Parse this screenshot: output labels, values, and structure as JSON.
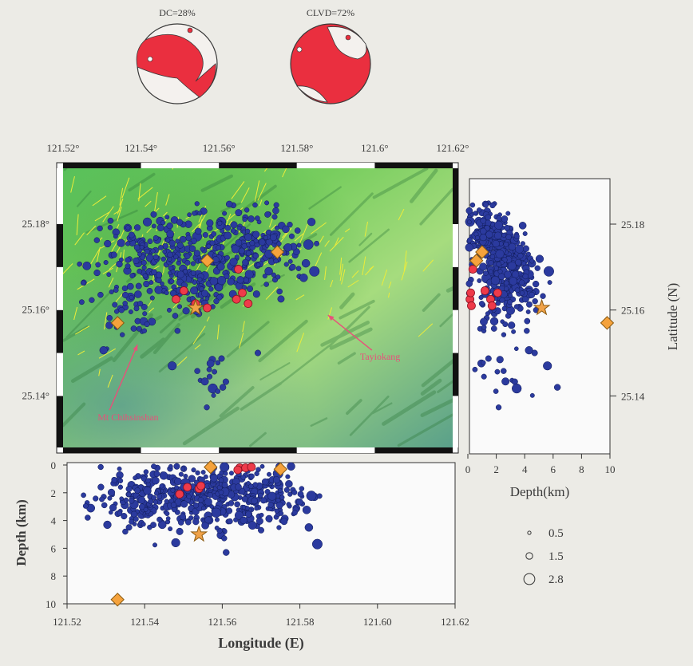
{
  "figure": {
    "beachballs": [
      {
        "label": "DC=28%",
        "type": "double-couple"
      },
      {
        "label": "CLVD=72%",
        "type": "clvd"
      }
    ],
    "map_labels": [
      {
        "text": "Tayiokang",
        "lon": 121.588,
        "lat": 25.1577
      },
      {
        "text": "Mt Chihsinshan",
        "lon": 121.535,
        "lat": 25.1445
      }
    ],
    "size_legend": [
      {
        "label": "0.5",
        "magnitude": 0.5
      },
      {
        "label": "1.5",
        "magnitude": 1.5
      },
      {
        "label": "2.8",
        "magnitude": 2.8
      }
    ],
    "colors": {
      "background": "#ecebe6",
      "quake_fill": "#2b3a9e",
      "quake_stroke": "#0f1a55",
      "red_event": "#ee3a4a",
      "station": "#f5a23c",
      "star": "#f0a248",
      "fault": "#ecec3a",
      "annotation": "#e8507a",
      "map_green": "#7fcf5e"
    }
  },
  "chart_data": [
    {
      "type": "scatter",
      "name": "map-view",
      "xlabel": "",
      "ylabel": "Latitude (N)",
      "xlim": [
        121.52,
        121.62
      ],
      "ylim": [
        25.128,
        25.193
      ],
      "x_ticks": [
        121.52,
        121.54,
        121.56,
        121.58,
        121.6,
        121.62
      ],
      "x_tick_labels": [
        "121.52°",
        "121.54°",
        "121.56°",
        "121.58°",
        "121.6°",
        "121.62°"
      ],
      "y_ticks": [
        25.14,
        25.16,
        25.18
      ],
      "y_tick_labels_left": [
        "25.14°",
        "25.16°",
        "25.18°"
      ],
      "y_tick_labels_right": [
        "25.14",
        "25.16",
        "25.18"
      ],
      "series": [
        {
          "name": "stations",
          "marker": "diamond",
          "points": [
            [
              121.534,
              25.157
            ],
            [
              121.557,
              25.1715
            ],
            [
              121.575,
              25.1735
            ]
          ]
        },
        {
          "name": "mainshock",
          "marker": "star",
          "points": [
            [
              121.554,
              25.1605
            ]
          ]
        },
        {
          "name": "red-events",
          "marker": "circle",
          "points": [
            [
              121.549,
              25.1625
            ],
            [
              121.551,
              25.1645
            ],
            [
              121.554,
              25.1615
            ],
            [
              121.557,
              25.1605
            ],
            [
              121.5645,
              25.1625
            ],
            [
              121.566,
              25.164
            ],
            [
              121.5675,
              25.1615
            ],
            [
              121.565,
              25.1695
            ]
          ]
        }
      ]
    },
    {
      "type": "scatter",
      "name": "longitude-depth",
      "xlabel": "Longitude (E)",
      "ylabel": "Depth (km)",
      "xlim": [
        121.52,
        121.62
      ],
      "ylim": [
        0,
        10
      ],
      "x_ticks": [
        121.52,
        121.54,
        121.56,
        121.58,
        121.6,
        121.62
      ],
      "x_tick_labels": [
        "121.52",
        "121.54",
        "121.56",
        "121.58",
        "121.60",
        "121.62"
      ],
      "y_ticks": [
        0,
        2,
        4,
        6,
        8,
        10
      ],
      "y_tick_labels": [
        "0",
        "2",
        "4",
        "6",
        "8",
        "10"
      ],
      "series": [
        {
          "name": "stations",
          "marker": "diamond",
          "points": [
            [
              121.557,
              0.15
            ],
            [
              121.575,
              0.3
            ],
            [
              121.533,
              9.7
            ]
          ]
        },
        {
          "name": "mainshock",
          "marker": "star",
          "points": [
            [
              121.554,
              5.0
            ]
          ]
        },
        {
          "name": "red-events",
          "marker": "circle",
          "points": [
            [
              121.549,
              2.1
            ],
            [
              121.551,
              1.6
            ],
            [
              121.554,
              1.7
            ],
            [
              121.5545,
              1.5
            ],
            [
              121.5645,
              0.2
            ],
            [
              121.566,
              0.2
            ],
            [
              121.5675,
              0.15
            ],
            [
              121.564,
              0.35
            ]
          ]
        }
      ]
    },
    {
      "type": "scatter",
      "name": "depth-latitude",
      "xlabel": "Depth(km)",
      "ylabel": "Latitude (N)",
      "xlim": [
        0,
        10
      ],
      "ylim": [
        25.128,
        25.193
      ],
      "x_ticks": [
        0,
        2,
        4,
        6,
        8,
        10
      ],
      "x_tick_labels": [
        "0",
        "2",
        "4",
        "6",
        "8",
        "10"
      ],
      "y_ticks": [
        25.14,
        25.16,
        25.18
      ],
      "y_tick_labels": [
        "25.14",
        "25.16",
        "25.18"
      ],
      "series": [
        {
          "name": "stations",
          "marker": "diamond",
          "points": [
            [
              1.0,
              25.1735
            ],
            [
              0.6,
              25.1715
            ],
            [
              9.8,
              25.157
            ]
          ]
        },
        {
          "name": "mainshock",
          "marker": "star",
          "points": [
            [
              5.2,
              25.1605
            ]
          ]
        },
        {
          "name": "red-events",
          "marker": "circle",
          "points": [
            [
              0.15,
              25.1625
            ],
            [
              0.2,
              25.164
            ],
            [
              0.25,
              25.161
            ],
            [
              1.6,
              25.1625
            ],
            [
              2.1,
              25.164
            ],
            [
              1.2,
              25.1645
            ],
            [
              1.7,
              25.161
            ],
            [
              0.35,
              25.1695
            ]
          ]
        }
      ]
    }
  ]
}
